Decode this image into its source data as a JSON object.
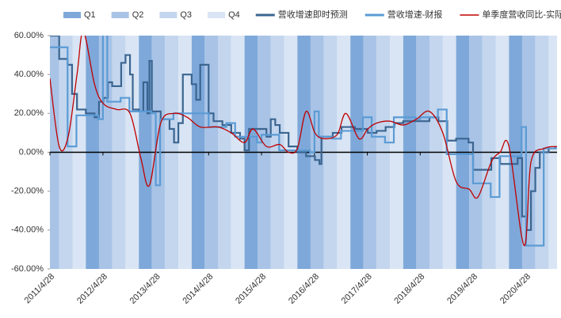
{
  "chart_data": {
    "type": "line",
    "xlim": [
      "2011/4/28",
      "2020/11/28"
    ],
    "xticks": [
      "2011/4/28",
      "2012/4/28",
      "2013/4/28",
      "2014/4/28",
      "2015/4/28",
      "2016/4/28",
      "2017/4/28",
      "2018/4/28",
      "2019/4/28",
      "2020/4/28"
    ],
    "ylim": [
      -60,
      60
    ],
    "yticks": [
      {
        "value": -60,
        "label": "-60.00%"
      },
      {
        "value": -40,
        "label": "-40.00%"
      },
      {
        "value": -20,
        "label": "-20.00%"
      },
      {
        "value": 0,
        "label": "0.00%"
      },
      {
        "value": 20,
        "label": "20.00%"
      },
      {
        "value": 40,
        "label": "40.00%"
      },
      {
        "value": 60,
        "label": "60.00%"
      }
    ],
    "bands": [
      {
        "name": "Q1",
        "color": "#7ea8d9"
      },
      {
        "name": "Q2",
        "color": "#a8c3e6"
      },
      {
        "name": "Q3",
        "color": "#c3d6ee"
      },
      {
        "name": "Q4",
        "color": "#d9e5f4"
      }
    ],
    "series": [
      {
        "name": "营收增速即时预测",
        "color": "#3b6590",
        "step": true,
        "x": [
          "2011/4/28",
          "2011/7/1",
          "2011/8/28",
          "2011/9/28",
          "2011/11/1",
          "2012/1/1",
          "2012/3/1",
          "2012/4/1",
          "2012/5/1",
          "2012/6/1",
          "2012/7/1",
          "2012/9/1",
          "2012/10/1",
          "2012/11/1",
          "2012/11/20",
          "2013/1/1",
          "2013/2/1",
          "2013/3/1",
          "2013/3/15",
          "2013/4/1",
          "2013/6/1",
          "2013/8/1",
          "2013/9/1",
          "2013/10/1",
          "2013/11/1",
          "2014/1/1",
          "2014/2/1",
          "2014/3/1",
          "2014/4/28",
          "2014/6/1",
          "2014/8/1",
          "2014/10/1",
          "2014/12/1",
          "2015/1/1",
          "2015/2/1",
          "2015/5/1",
          "2015/6/1",
          "2015/7/1",
          "2015/8/1",
          "2015/9/1",
          "2015/11/1",
          "2016/1/1",
          "2016/3/1",
          "2016/5/1",
          "2016/6/1",
          "2016/6/15",
          "2016/9/1",
          "2016/11/1",
          "2017/2/1",
          "2017/5/1",
          "2017/7/1",
          "2017/9/1",
          "2017/11/1",
          "2018/1/1",
          "2018/4/1",
          "2018/7/1",
          "2018/9/1",
          "2018/11/1",
          "2019/1/1",
          "2019/3/28",
          "2019/4/28",
          "2019/7/1",
          "2019/9/1",
          "2019/11/1",
          "2020/1/1",
          "2020/3/1",
          "2020/4/1",
          "2020/5/1",
          "2020/6/1",
          "2020/7/1",
          "2020/8/1",
          "2020/10/1",
          "2020/11/15"
        ],
        "values": [
          60,
          48,
          45,
          30,
          22,
          20,
          18,
          26,
          28,
          36,
          34,
          46,
          50,
          40,
          22,
          21,
          36,
          20,
          47,
          21,
          17,
          12,
          5,
          15,
          40,
          35,
          27,
          45,
          20,
          16,
          14,
          10,
          7,
          1,
          12,
          12,
          8,
          17,
          14,
          10,
          3,
          0,
          -2,
          -4,
          -6,
          8,
          10,
          13,
          12,
          10,
          11,
          13,
          15,
          16,
          16,
          18,
          16,
          6,
          7,
          5,
          -9,
          -9,
          -3,
          -6,
          -6,
          -3,
          -33,
          -40,
          -20,
          -8,
          0,
          2,
          3
        ]
      },
      {
        "name": "营收增速-财报",
        "color": "#5b9bd5",
        "step": true,
        "x": [
          "2011/4/28",
          "2011/8/28",
          "2011/10/28",
          "2012/3/28",
          "2012/4/28",
          "2012/5/28",
          "2012/8/28",
          "2012/10/28",
          "2013/3/28",
          "2013/4/28",
          "2013/5/28",
          "2013/8/28",
          "2014/4/28",
          "2014/8/28",
          "2014/10/28",
          "2015/3/28",
          "2015/4/28",
          "2015/8/28",
          "2016/3/28",
          "2016/4/28",
          "2016/5/28",
          "2016/8/28",
          "2016/10/28",
          "2017/3/28",
          "2017/5/28",
          "2017/8/28",
          "2017/10/28",
          "2018/3/28",
          "2018/4/28",
          "2018/8/28",
          "2018/10/28",
          "2019/4/28",
          "2019/8/28",
          "2019/10/28",
          "2020/3/28",
          "2020/4/28",
          "2020/8/28",
          "2020/11/28"
        ],
        "values": [
          54,
          3,
          19,
          17,
          62,
          26,
          28,
          21,
          20,
          -17,
          17,
          20,
          13,
          15,
          8,
          5,
          9,
          1,
          0,
          21,
          8,
          7,
          11,
          18,
          8,
          5,
          18,
          17,
          18,
          22,
          -1,
          -16,
          -23,
          -2,
          13,
          -48,
          2,
          2
        ]
      },
      {
        "name": "单季度营收同比-实际值",
        "color": "#c00000",
        "smooth": true,
        "x": [
          "2011/4/28",
          "2011/7/1",
          "2011/9/1",
          "2011/11/1",
          "2011/12/15",
          "2012/3/1",
          "2012/5/1",
          "2012/8/1",
          "2012/11/1",
          "2013/1/15",
          "2013/3/15",
          "2013/6/1",
          "2013/9/1",
          "2013/12/1",
          "2014/3/1",
          "2014/7/1",
          "2014/10/1",
          "2015/1/1",
          "2015/3/1",
          "2015/6/1",
          "2015/9/1",
          "2015/11/1",
          "2016/1/1",
          "2016/3/1",
          "2016/5/1",
          "2016/7/1",
          "2016/10/1",
          "2016/12/1",
          "2017/3/1",
          "2017/5/1",
          "2017/7/1",
          "2017/10/1",
          "2018/1/1",
          "2018/4/1",
          "2018/7/1",
          "2018/10/1",
          "2019/1/1",
          "2019/4/1",
          "2019/6/1",
          "2019/9/1",
          "2019/11/1",
          "2020/1/1",
          "2020/4/15",
          "2020/6/1",
          "2020/9/1",
          "2020/11/28"
        ],
        "values": [
          38,
          3,
          8,
          40,
          62,
          35,
          25,
          22,
          20,
          -3,
          -17,
          15,
          20,
          18,
          13,
          13,
          10,
          5,
          12,
          3,
          4,
          0,
          2,
          21,
          10,
          7,
          9,
          20,
          7,
          12,
          15,
          16,
          14,
          17,
          21,
          10,
          -15,
          -19,
          -23,
          -5,
          0,
          3,
          -48,
          -5,
          2,
          3
        ]
      }
    ]
  }
}
